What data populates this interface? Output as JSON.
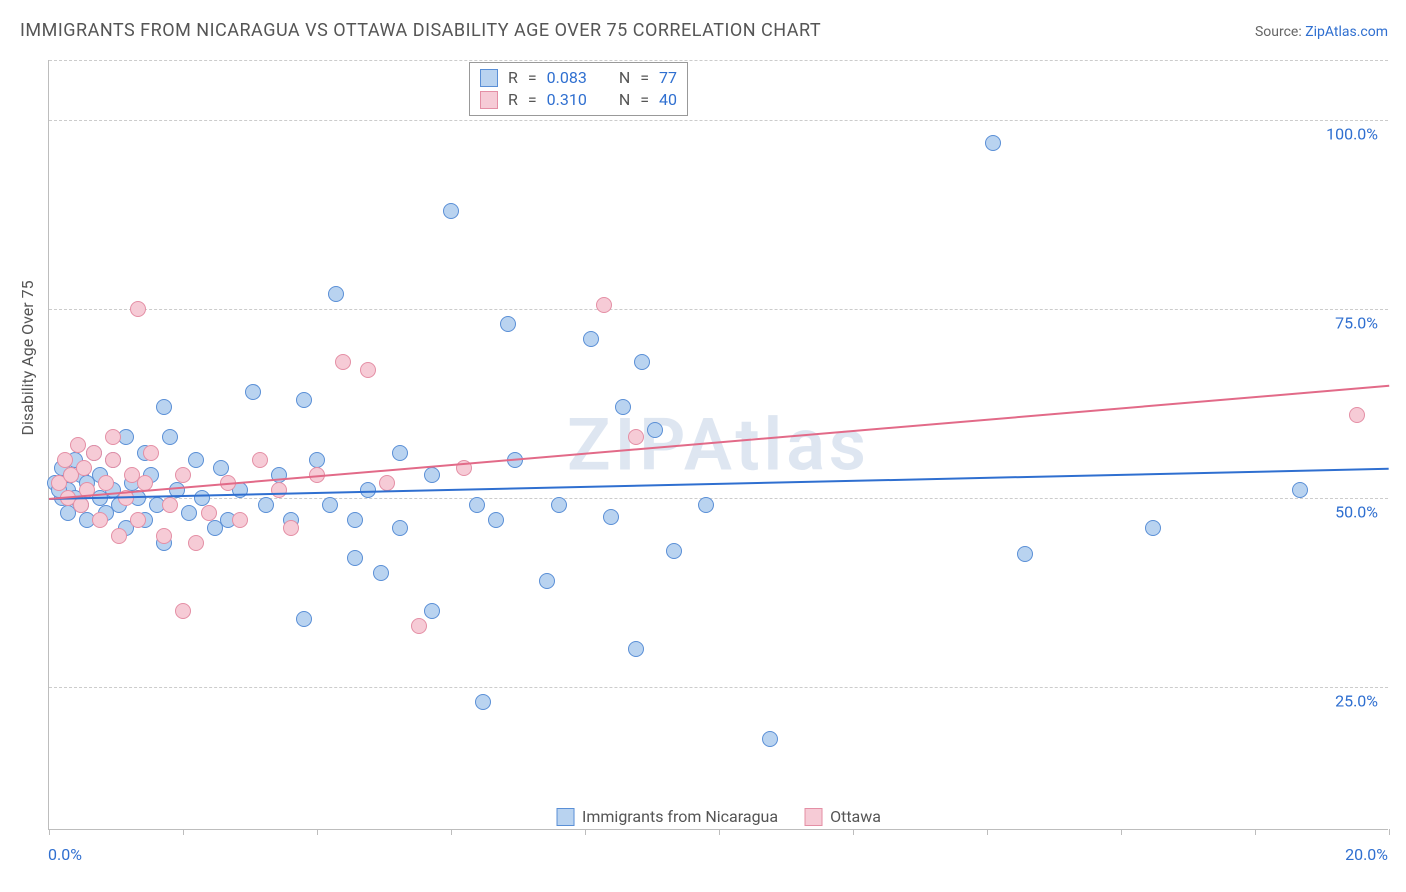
{
  "title": "IMMIGRANTS FROM NICARAGUA VS OTTAWA DISABILITY AGE OVER 75 CORRELATION CHART",
  "source_prefix": "Source: ",
  "source_link_text": "ZipAtlas.com",
  "watermark": "ZIPAtlas",
  "y_axis_title": "Disability Age Over 75",
  "chart": {
    "type": "scatter",
    "x_domain": [
      0,
      21
    ],
    "y_domain": [
      6,
      108
    ],
    "x_tick_positions": [
      0,
      2.1,
      4.2,
      6.3,
      8.4,
      10.5,
      12.6,
      14.7,
      16.8,
      18.9,
      21
    ],
    "x_labels": {
      "min": "0.0%",
      "max": "20.0%"
    },
    "y_gridlines": [
      25,
      50,
      75,
      100,
      108
    ],
    "y_tick_labels": {
      "25": "25.0%",
      "50": "50.0%",
      "75": "75.0%",
      "100": "100.0%"
    },
    "background_color": "#ffffff",
    "grid_color": "#cccccc",
    "axis_color": "#bdbdbd",
    "label_color": "#2f6fd0",
    "marker_radius": 8,
    "marker_stroke_width": 1,
    "trend_line_width": 2,
    "series": [
      {
        "id": "blue",
        "label": "Immigrants from Nicaragua",
        "fill": "#b9d3f0",
        "stroke": "#5a8fd6",
        "line_color": "#2f6fd0",
        "R": "0.083",
        "N": "77",
        "trend": {
          "x1": 0,
          "y1": 50,
          "x2": 21,
          "y2": 54
        },
        "points": [
          [
            0.1,
            52
          ],
          [
            0.2,
            50
          ],
          [
            0.2,
            54
          ],
          [
            0.3,
            51
          ],
          [
            0.3,
            48
          ],
          [
            0.4,
            55
          ],
          [
            0.4,
            50
          ],
          [
            0.5,
            53
          ],
          [
            0.5,
            49
          ],
          [
            0.6,
            52
          ],
          [
            0.6,
            47
          ],
          [
            0.7,
            56
          ],
          [
            0.8,
            50
          ],
          [
            0.8,
            53
          ],
          [
            0.9,
            48
          ],
          [
            1.0,
            55
          ],
          [
            1.0,
            51
          ],
          [
            1.1,
            49
          ],
          [
            1.2,
            58
          ],
          [
            1.2,
            46
          ],
          [
            1.3,
            52
          ],
          [
            1.4,
            50
          ],
          [
            1.5,
            56
          ],
          [
            1.5,
            47
          ],
          [
            1.6,
            53
          ],
          [
            1.7,
            49
          ],
          [
            1.8,
            62
          ],
          [
            1.8,
            44
          ],
          [
            1.9,
            58
          ],
          [
            2.0,
            51
          ],
          [
            2.2,
            48
          ],
          [
            2.3,
            55
          ],
          [
            2.4,
            50
          ],
          [
            2.6,
            46
          ],
          [
            2.7,
            54
          ],
          [
            2.8,
            47
          ],
          [
            3.0,
            51
          ],
          [
            3.2,
            64
          ],
          [
            3.4,
            49
          ],
          [
            3.6,
            53
          ],
          [
            3.8,
            47
          ],
          [
            4.0,
            63
          ],
          [
            4.0,
            34
          ],
          [
            4.2,
            55
          ],
          [
            4.4,
            49
          ],
          [
            4.5,
            77
          ],
          [
            4.8,
            42
          ],
          [
            4.8,
            47
          ],
          [
            5.0,
            51
          ],
          [
            5.2,
            40
          ],
          [
            5.5,
            56
          ],
          [
            5.5,
            46
          ],
          [
            6.0,
            53
          ],
          [
            6.0,
            35
          ],
          [
            6.3,
            88
          ],
          [
            6.7,
            49
          ],
          [
            6.8,
            23
          ],
          [
            7.0,
            47
          ],
          [
            7.2,
            73
          ],
          [
            7.3,
            55
          ],
          [
            7.8,
            39
          ],
          [
            8.0,
            49
          ],
          [
            8.5,
            71
          ],
          [
            8.8,
            47.5
          ],
          [
            9.0,
            62
          ],
          [
            9.2,
            30
          ],
          [
            9.3,
            68
          ],
          [
            9.5,
            59
          ],
          [
            9.8,
            43
          ],
          [
            10.3,
            49
          ],
          [
            11.3,
            18
          ],
          [
            14.8,
            97
          ],
          [
            15.3,
            42.5
          ],
          [
            17.3,
            46
          ],
          [
            19.6,
            51
          ],
          [
            0.15,
            51
          ],
          [
            0.35,
            53
          ]
        ]
      },
      {
        "id": "pink",
        "label": "Ottawa",
        "fill": "#f6cbd6",
        "stroke": "#e48fa5",
        "line_color": "#e26a88",
        "R": "0.310",
        "N": "40",
        "trend": {
          "x1": 0,
          "y1": 50,
          "x2": 21,
          "y2": 65
        },
        "points": [
          [
            0.15,
            52
          ],
          [
            0.25,
            55
          ],
          [
            0.3,
            50
          ],
          [
            0.35,
            53
          ],
          [
            0.45,
            57
          ],
          [
            0.5,
            49
          ],
          [
            0.55,
            54
          ],
          [
            0.6,
            51
          ],
          [
            0.7,
            56
          ],
          [
            0.8,
            47
          ],
          [
            0.9,
            52
          ],
          [
            1.0,
            55
          ],
          [
            1.0,
            58
          ],
          [
            1.1,
            45
          ],
          [
            1.2,
            50
          ],
          [
            1.3,
            53
          ],
          [
            1.4,
            47
          ],
          [
            1.4,
            75
          ],
          [
            1.5,
            52
          ],
          [
            1.6,
            56
          ],
          [
            1.8,
            45
          ],
          [
            1.9,
            49
          ],
          [
            2.1,
            53
          ],
          [
            2.1,
            35
          ],
          [
            2.3,
            44
          ],
          [
            2.5,
            48
          ],
          [
            2.8,
            52
          ],
          [
            3.0,
            47
          ],
          [
            3.3,
            55
          ],
          [
            3.6,
            51
          ],
          [
            3.8,
            46
          ],
          [
            4.2,
            53
          ],
          [
            4.6,
            68
          ],
          [
            5.0,
            67
          ],
          [
            5.3,
            52
          ],
          [
            5.8,
            33
          ],
          [
            6.5,
            54
          ],
          [
            8.7,
            75.5
          ],
          [
            9.2,
            58
          ],
          [
            20.5,
            61
          ]
        ]
      }
    ],
    "rn_legend": {
      "labels": {
        "R": "R",
        "N": "N",
        "eq": "="
      }
    },
    "bottom_legend": true
  }
}
